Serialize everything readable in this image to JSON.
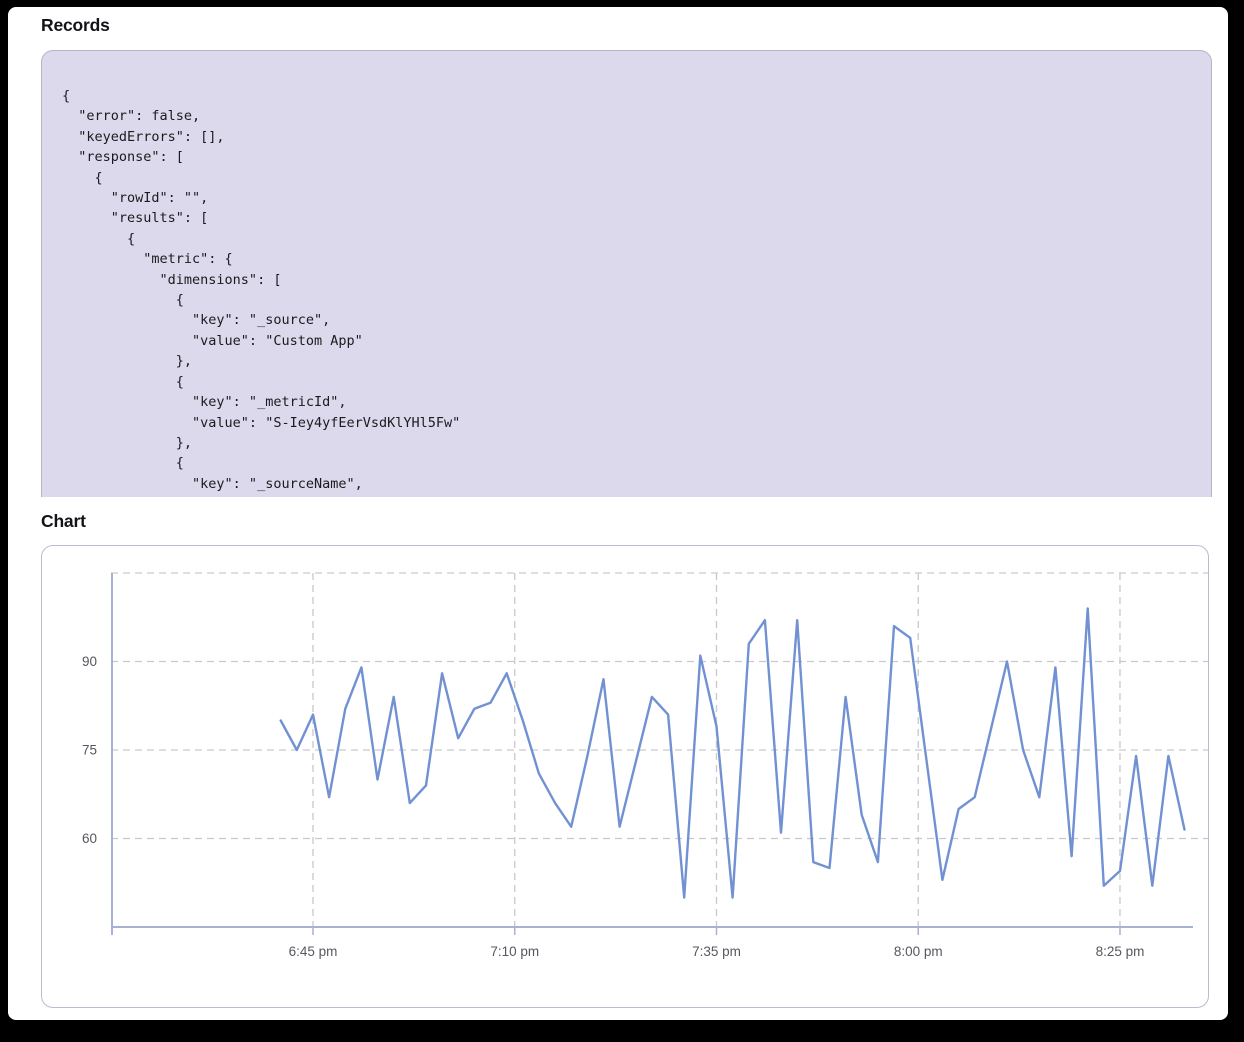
{
  "page": {
    "background": "#ffffff",
    "frame_color": "#000000"
  },
  "records": {
    "heading": "Records",
    "panel_bg": "#dcd9ed",
    "json_lines": [
      "{",
      "  \"error\": false,",
      "  \"keyedErrors\": [],",
      "  \"response\": [",
      "    {",
      "      \"rowId\": \"\",",
      "      \"results\": [",
      "        {",
      "          \"metric\": {",
      "            \"dimensions\": [",
      "              {",
      "                \"key\": \"_source\",",
      "                \"value\": \"Custom App\"",
      "              },",
      "              {",
      "                \"key\": \"_metricId\",",
      "                \"value\": \"S-Iey4yfEerVsdKlYHl5Fw\"",
      "              },",
      "              {",
      "                \"key\": \"_sourceName\","
    ]
  },
  "chart": {
    "heading": "Chart"
  },
  "chart_data": {
    "type": "line",
    "title": "Chart",
    "x_tick_labels": [
      "6:45 pm",
      "7:10 pm",
      "7:35 pm",
      "8:00 pm",
      "8:25 pm"
    ],
    "y_tick_labels": [
      60,
      75,
      90
    ],
    "y_gridlines": [
      60,
      75,
      90,
      105
    ],
    "ylim": [
      45,
      105
    ],
    "grid": "dashed",
    "legend": "none",
    "line_color": "#7191d3",
    "axis_color": "#a7b1d5",
    "x_range_estimated": "6:41 pm to 8:33 pm, one point every 2 minutes; tick spacing 25 minutes",
    "series": [
      {
        "name": "metric-values",
        "values": [
          80,
          75,
          81,
          67,
          82,
          89,
          70,
          84,
          66,
          69,
          88,
          77,
          82,
          83,
          88,
          80,
          71,
          66,
          62,
          74,
          87,
          62,
          73,
          84,
          81,
          50,
          91,
          79,
          50,
          93,
          97,
          61,
          97,
          56,
          55,
          84,
          64,
          56,
          96,
          94,
          73.5,
          53,
          65,
          67,
          78.5,
          90,
          75,
          67,
          89,
          57,
          99,
          52,
          54.5,
          74,
          52,
          74,
          61.5
        ]
      }
    ]
  }
}
